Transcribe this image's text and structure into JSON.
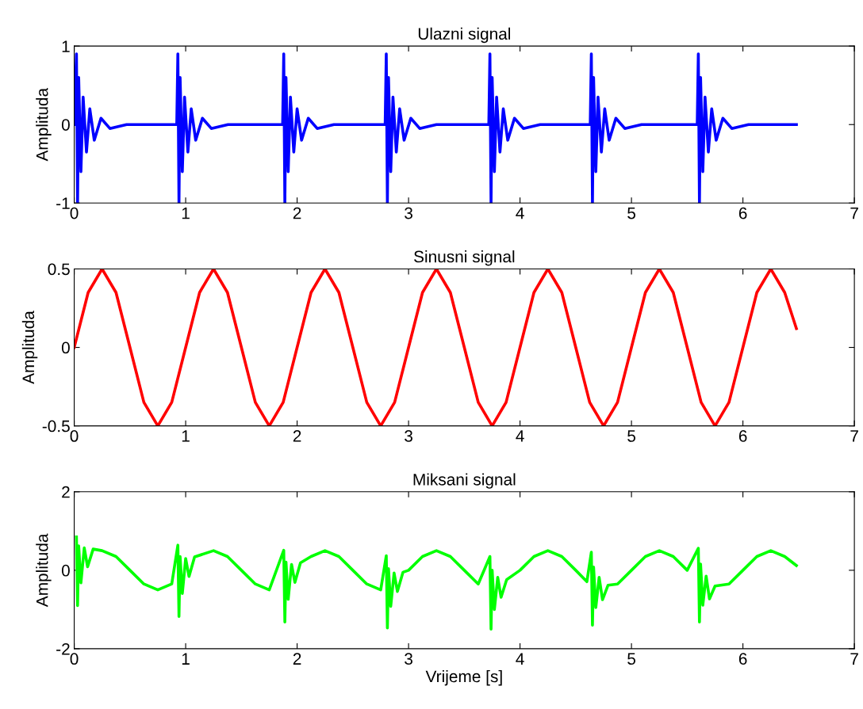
{
  "chart_data": [
    {
      "type": "line",
      "title": "Ulazni signal",
      "ylabel": "Amplituda",
      "xlim": [
        0,
        7
      ],
      "xticks": [
        0,
        1,
        2,
        3,
        4,
        5,
        6,
        7
      ],
      "ylim": [
        -1,
        1
      ],
      "yticks": [
        -1,
        0,
        1
      ],
      "grid": false,
      "legend": false,
      "series": [
        {
          "color": "#0000ff",
          "x": [
            0,
            0.02,
            0.03,
            0.04,
            0.06,
            0.08,
            0.11,
            0.14,
            0.18,
            0.24,
            0.32,
            0.47,
            0.92,
            0.93,
            0.94,
            0.95,
            0.97,
            0.99,
            1.02,
            1.05,
            1.09,
            1.15,
            1.23,
            1.38,
            1.87,
            1.88,
            1.89,
            1.9,
            1.92,
            1.94,
            1.97,
            2.0,
            2.04,
            2.1,
            2.18,
            2.33,
            2.79,
            2.8,
            2.81,
            2.82,
            2.84,
            2.86,
            2.89,
            2.92,
            2.96,
            3.02,
            3.1,
            3.25,
            3.72,
            3.73,
            3.74,
            3.75,
            3.77,
            3.79,
            3.82,
            3.85,
            3.89,
            3.95,
            4.03,
            4.18,
            4.63,
            4.64,
            4.65,
            4.66,
            4.68,
            4.7,
            4.73,
            4.76,
            4.8,
            4.86,
            4.94,
            5.09,
            5.59,
            5.6,
            5.61,
            5.62,
            5.64,
            5.66,
            5.69,
            5.72,
            5.76,
            5.82,
            5.9,
            6.05,
            6.48
          ],
          "values": [
            0,
            0.9,
            -1,
            0.6,
            -0.6,
            0.35,
            -0.35,
            0.2,
            -0.2,
            0.08,
            -0.05,
            0,
            0,
            0.9,
            -1,
            0.6,
            -0.6,
            0.35,
            -0.35,
            0.2,
            -0.2,
            0.08,
            -0.05,
            0,
            0,
            0.9,
            -1,
            0.6,
            -0.6,
            0.35,
            -0.35,
            0.2,
            -0.2,
            0.08,
            -0.05,
            0,
            0,
            0.9,
            -1,
            0.6,
            -0.6,
            0.35,
            -0.35,
            0.2,
            -0.2,
            0.08,
            -0.05,
            0,
            0,
            0.9,
            -1,
            0.6,
            -0.6,
            0.35,
            -0.35,
            0.2,
            -0.2,
            0.08,
            -0.05,
            0,
            0,
            0.9,
            -1,
            0.6,
            -0.6,
            0.35,
            -0.35,
            0.2,
            -0.2,
            0.08,
            -0.05,
            0,
            0,
            0.9,
            -1,
            0.6,
            -0.6,
            0.35,
            -0.35,
            0.2,
            -0.2,
            0.08,
            -0.05,
            0,
            0
          ]
        }
      ]
    },
    {
      "type": "line",
      "title": "Sinusni signal",
      "ylabel": "Amplituda",
      "xlim": [
        0,
        7
      ],
      "xticks": [
        0,
        1,
        2,
        3,
        4,
        5,
        6,
        7
      ],
      "ylim": [
        -0.5,
        0.5
      ],
      "yticks": [
        -0.5,
        0,
        0.5
      ],
      "grid": false,
      "legend": false,
      "series": [
        {
          "color": "#ff0000",
          "x": [
            0,
            0.125,
            0.25,
            0.375,
            0.5,
            0.625,
            0.75,
            0.875,
            1,
            1.125,
            1.25,
            1.375,
            1.5,
            1.625,
            1.75,
            1.875,
            2,
            2.125,
            2.25,
            2.375,
            2.5,
            2.625,
            2.75,
            2.875,
            3,
            3.125,
            3.25,
            3.375,
            3.5,
            3.625,
            3.75,
            3.875,
            4,
            4.125,
            4.25,
            4.375,
            4.5,
            4.625,
            4.75,
            4.875,
            5,
            5.125,
            5.25,
            5.375,
            5.5,
            5.625,
            5.75,
            5.875,
            6,
            6.125,
            6.25,
            6.375,
            6.48
          ],
          "values": [
            0,
            0.35,
            0.5,
            0.35,
            0,
            -0.35,
            -0.5,
            -0.35,
            0,
            0.35,
            0.5,
            0.35,
            0,
            -0.35,
            -0.5,
            -0.35,
            0,
            0.35,
            0.5,
            0.35,
            0,
            -0.35,
            -0.5,
            -0.35,
            0,
            0.35,
            0.5,
            0.35,
            0,
            -0.35,
            -0.5,
            -0.35,
            0,
            0.35,
            0.5,
            0.35,
            0,
            -0.35,
            -0.5,
            -0.35,
            0,
            0.35,
            0.5,
            0.35,
            0,
            -0.35,
            -0.5,
            -0.35,
            0,
            0.35,
            0.5,
            0.35,
            0.12
          ]
        }
      ]
    },
    {
      "type": "line",
      "title": "Miksani signal",
      "xlabel": "Vrijeme [s]",
      "ylabel": "Amplituda",
      "xlim": [
        0,
        7
      ],
      "xticks": [
        0,
        1,
        2,
        3,
        4,
        5,
        6,
        7
      ],
      "ylim": [
        -2,
        2
      ],
      "yticks": [
        -2,
        0,
        2
      ],
      "grid": false,
      "legend": false,
      "series": [
        {
          "color": "#00ff00",
          "x": [
            0.02,
            0.03,
            0.04,
            0.06,
            0.09,
            0.12,
            0.17,
            0.25,
            0.375,
            0.5,
            0.625,
            0.75,
            0.875,
            0.93,
            0.94,
            0.95,
            0.97,
            1.0,
            1.03,
            1.08,
            1.25,
            1.375,
            1.5,
            1.625,
            1.75,
            1.88,
            1.89,
            1.9,
            1.92,
            1.95,
            1.98,
            2.03,
            2.125,
            2.25,
            2.375,
            2.5,
            2.625,
            2.75,
            2.8,
            2.81,
            2.82,
            2.84,
            2.87,
            2.9,
            2.95,
            3.0,
            3.125,
            3.25,
            3.375,
            3.5,
            3.625,
            3.73,
            3.74,
            3.75,
            3.77,
            3.8,
            3.83,
            3.88,
            4.0,
            4.125,
            4.25,
            4.375,
            4.5,
            4.6,
            4.64,
            4.65,
            4.66,
            4.68,
            4.71,
            4.74,
            4.79,
            4.875,
            5.0,
            5.125,
            5.25,
            5.375,
            5.5,
            5.6,
            5.61,
            5.62,
            5.64,
            5.67,
            5.7,
            5.75,
            5.875,
            6.0,
            6.125,
            6.25,
            6.375,
            6.48
          ],
          "values": [
            0.85,
            -0.9,
            0.62,
            -0.32,
            0.57,
            0.09,
            0.54,
            0.5,
            0.35,
            0,
            -0.35,
            -0.5,
            -0.35,
            0.64,
            -1.18,
            0.35,
            -0.59,
            0.3,
            -0.16,
            0.34,
            0.5,
            0.35,
            0,
            -0.35,
            -0.5,
            0.51,
            -1.32,
            0.21,
            -0.74,
            0.15,
            -0.31,
            0.19,
            0.35,
            0.5,
            0.35,
            0,
            -0.35,
            -0.5,
            0.37,
            -1.47,
            0.04,
            -0.92,
            -0.07,
            -0.54,
            -0.05,
            0,
            0.35,
            0.5,
            0.35,
            0,
            -0.35,
            0.35,
            -1.5,
            0,
            -1,
            -0.18,
            -0.69,
            -0.24,
            0,
            0.35,
            0.5,
            0.35,
            0,
            -0.29,
            0.46,
            -1.4,
            0.08,
            -0.95,
            -0.18,
            -0.75,
            -0.38,
            -0.35,
            0,
            0.35,
            0.5,
            0.35,
            0,
            0.56,
            -1.32,
            0.16,
            -0.89,
            -0.15,
            -0.73,
            -0.4,
            -0.35,
            0,
            0.35,
            0.5,
            0.35,
            0.12
          ]
        }
      ]
    }
  ]
}
